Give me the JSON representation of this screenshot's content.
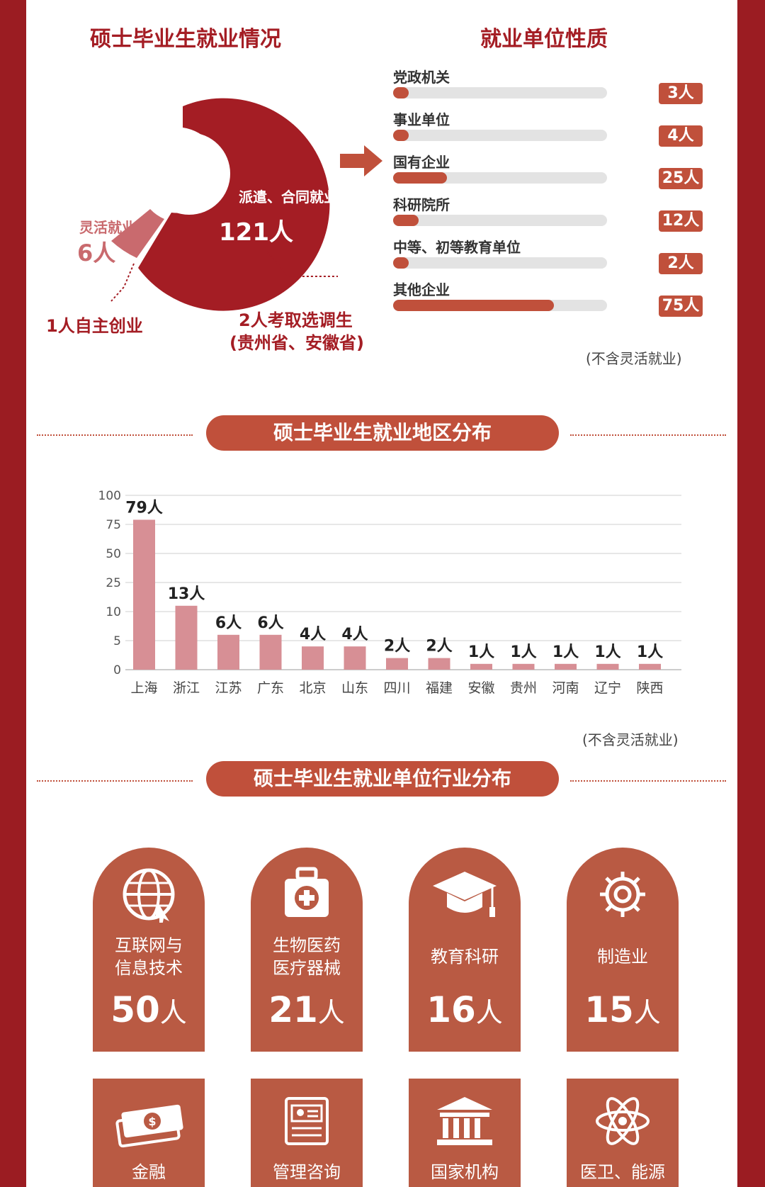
{
  "donut": {
    "title": "硕士毕业生就业情况",
    "segments": [
      {
        "label": "派遣、合同就业",
        "value": "121人",
        "count": 121
      },
      {
        "label": "灵活就业",
        "value": "6人",
        "count": 6
      }
    ],
    "annotation_self": "1人自主创业",
    "annotation_selected_line1": "2人考取选调生",
    "annotation_selected_line2": "(贵州省、安徽省)"
  },
  "nature": {
    "title": "就业单位性质",
    "items": [
      {
        "label": "党政机关",
        "count": 3,
        "badge": "3人"
      },
      {
        "label": "事业单位",
        "count": 4,
        "badge": "4人"
      },
      {
        "label": "国有企业",
        "count": 25,
        "badge": "25人"
      },
      {
        "label": "科研院所",
        "count": 12,
        "badge": "12人"
      },
      {
        "label": "中等、初等教育单位",
        "count": 2,
        "badge": "2人"
      },
      {
        "label": "其他企业",
        "count": 75,
        "badge": "75人"
      }
    ],
    "note": "(不含灵活就业)"
  },
  "region": {
    "section_title": "硕士毕业生就业地区分布",
    "note": "(不含灵活就业)"
  },
  "industry": {
    "section_title": "硕士毕业生就业单位行业分布",
    "cards_row1": [
      {
        "icon": "globe-icon",
        "name": "互联网与\n信息技术",
        "num": "50",
        "unit": "人"
      },
      {
        "icon": "medical-kit-icon",
        "name": "生物医药\n医疗器械",
        "num": "21",
        "unit": "人"
      },
      {
        "icon": "graduation-cap-icon",
        "name": "教育科研",
        "num": "16",
        "unit": "人"
      },
      {
        "icon": "gear-icon",
        "name": "制造业",
        "num": "15",
        "unit": "人"
      }
    ],
    "cards_row2": [
      {
        "icon": "money-icon",
        "name": "金融"
      },
      {
        "icon": "document-icon",
        "name": "管理咨询"
      },
      {
        "icon": "building-icon",
        "name": "国家机构"
      },
      {
        "icon": "atom-icon",
        "name": "医卫、能源"
      }
    ]
  },
  "colors": {
    "dark_red": "#a41d24",
    "accent": "#c0503b",
    "bar_pink": "#d78f95",
    "card": "#b95a43"
  },
  "chart_data": {
    "type": "bar",
    "categories": [
      "上海",
      "浙江",
      "江苏",
      "广东",
      "北京",
      "山东",
      "四川",
      "福建",
      "安徽",
      "贵州",
      "河南",
      "辽宁",
      "陕西"
    ],
    "values": [
      79,
      13,
      6,
      6,
      4,
      4,
      2,
      2,
      1,
      1,
      1,
      1,
      1
    ],
    "data_labels": [
      "79人",
      "13人",
      "6人",
      "6人",
      "4人",
      "4人",
      "2人",
      "2人",
      "1人",
      "1人",
      "1人",
      "1人",
      "1人"
    ],
    "y_ticks": [
      0,
      5,
      10,
      25,
      50,
      75,
      100
    ],
    "ylim": [
      0,
      100
    ],
    "grid": true
  }
}
